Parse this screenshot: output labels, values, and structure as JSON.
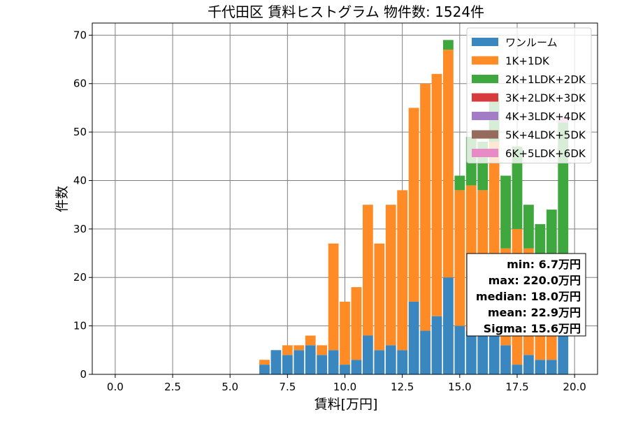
{
  "chart_data": {
    "type": "bar",
    "stacked": true,
    "title": "千代田区 賃料ヒストグラム  物件数: 1524件",
    "xlabel": "賃料[万円]",
    "ylabel": "件数",
    "xlim": [
      -1.0,
      21.0
    ],
    "ylim": [
      0,
      72.5
    ],
    "xticks": [
      "0.0",
      "2.5",
      "5.0",
      "7.5",
      "10.0",
      "12.5",
      "15.0",
      "17.5",
      "20.0"
    ],
    "xtick_values": [
      0,
      2.5,
      5,
      7.5,
      10,
      12.5,
      15,
      17.5,
      20
    ],
    "yticks": [
      "0",
      "10",
      "20",
      "30",
      "40",
      "50",
      "60",
      "70"
    ],
    "ytick_values": [
      0,
      10,
      20,
      30,
      40,
      50,
      60,
      70
    ],
    "grid": true,
    "legend_position": "top-right",
    "bin_width": 0.5,
    "bins": [
      6.5,
      7.0,
      7.5,
      8.0,
      8.5,
      9.0,
      9.5,
      10.0,
      10.5,
      11.0,
      11.5,
      12.0,
      12.5,
      13.0,
      13.5,
      14.0,
      14.5,
      15.0,
      15.5,
      16.0,
      16.5,
      17.0,
      17.5,
      18.0,
      18.5,
      19.0,
      19.5
    ],
    "series": [
      {
        "name": "ワンルーム",
        "color": "#3a87bf",
        "values": [
          2,
          5,
          4,
          5,
          6,
          4,
          5,
          2,
          3,
          8,
          5,
          6,
          5,
          15,
          9,
          12,
          20,
          10,
          9,
          8,
          8,
          6,
          2,
          4,
          3,
          3,
          9
        ]
      },
      {
        "name": "1K+1DK",
        "color": "#ff8b27",
        "values": [
          1,
          0,
          2,
          1,
          2,
          2,
          22,
          13,
          15,
          27,
          22,
          29,
          33,
          40,
          51,
          50,
          47,
          28,
          30,
          30,
          40,
          20,
          28,
          22,
          17,
          15,
          15
        ]
      },
      {
        "name": "2K+1LDK+2DK",
        "color": "#3ea73e",
        "values": [
          0,
          0,
          0,
          0,
          0,
          0,
          0,
          0,
          0,
          0,
          0,
          0,
          0,
          0,
          0,
          0,
          2,
          3,
          10,
          10,
          9,
          15,
          17,
          9,
          11,
          16,
          28
        ]
      },
      {
        "name": "3K+2LDK+3DK",
        "color": "#d73b3c",
        "values": [
          0,
          0,
          0,
          0,
          0,
          0,
          0,
          0,
          0,
          0,
          0,
          0,
          0,
          0,
          0,
          0,
          0,
          0,
          0,
          0,
          0,
          0,
          0,
          0,
          0,
          0,
          0
        ]
      },
      {
        "name": "4K+3LDK+4DK",
        "color": "#a27dc5",
        "values": [
          0,
          0,
          0,
          0,
          0,
          0,
          0,
          0,
          0,
          0,
          0,
          0,
          0,
          0,
          0,
          0,
          0,
          0,
          0,
          0,
          0,
          0,
          0,
          0,
          0,
          0,
          0
        ]
      },
      {
        "name": "5K+4LDK+5DK",
        "color": "#976a5e",
        "values": [
          0,
          0,
          0,
          0,
          0,
          0,
          0,
          0,
          0,
          0,
          0,
          0,
          0,
          0,
          0,
          0,
          0,
          0,
          0,
          0,
          0,
          0,
          0,
          0,
          0,
          0,
          0
        ]
      },
      {
        "name": "6K+5LDK+6DK",
        "color": "#e78ac6",
        "values": [
          0,
          0,
          0,
          0,
          0,
          0,
          0,
          0,
          0,
          0,
          0,
          0,
          0,
          0,
          0,
          0,
          0,
          0,
          0,
          0,
          0,
          0,
          0,
          0,
          0,
          0,
          1
        ]
      }
    ],
    "stats": [
      "min: 6.7万円",
      "max: 220.0万円",
      "median: 18.0万円",
      "mean: 22.9万円",
      "Sigma: 15.6万円"
    ]
  }
}
